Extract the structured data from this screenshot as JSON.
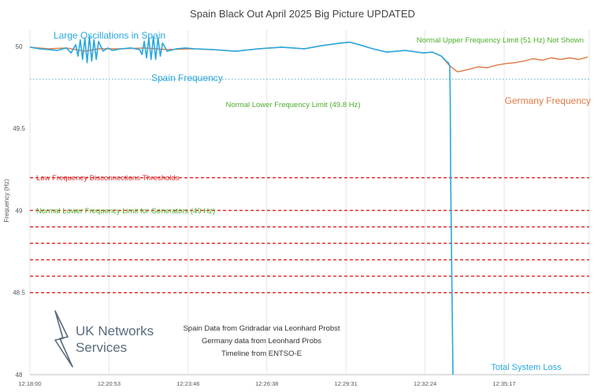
{
  "chart_data": {
    "type": "line",
    "title": "Spain Black Out April 2025 Big Picture UPDATED",
    "ylabel": "Frequency (Hz)",
    "ylim": [
      48,
      50.1
    ],
    "yticks": [
      {
        "value": 50,
        "label": "50"
      },
      {
        "value": 49.5,
        "label": "49.5"
      },
      {
        "value": 49,
        "label": "49"
      },
      {
        "value": 48.5,
        "label": "48.5"
      },
      {
        "value": 48,
        "label": "48"
      }
    ],
    "xlim_seconds": [
      0,
      1223
    ],
    "xticks": [
      {
        "s": 0,
        "label": "12:18:00"
      },
      {
        "s": 173,
        "label": "12:20:53"
      },
      {
        "s": 346,
        "label": "12:23:46"
      },
      {
        "s": 518,
        "label": "12:26:38"
      },
      {
        "s": 691,
        "label": "12:29:31"
      },
      {
        "s": 864,
        "label": "12:32:24"
      },
      {
        "s": 1037,
        "label": "12:35:17"
      }
    ],
    "grid": true,
    "series": [
      {
        "name": "Germany Frequency",
        "color": "#e07a45",
        "x": [
          0,
          40,
          80,
          120,
          150,
          200,
          250,
          300,
          350,
          400,
          450,
          500,
          550,
          600,
          640,
          680,
          700,
          720,
          750,
          780,
          820,
          860,
          880,
          900,
          915,
          925,
          935,
          945,
          960,
          980,
          1000,
          1020,
          1040,
          1060,
          1080,
          1100,
          1120,
          1140,
          1160,
          1180,
          1200,
          1220
        ],
        "y": [
          49.995,
          49.985,
          49.99,
          49.97,
          49.985,
          49.985,
          49.99,
          49.98,
          49.985,
          49.98,
          49.97,
          49.985,
          49.995,
          49.985,
          50.005,
          50.02,
          50.025,
          50.01,
          49.985,
          49.965,
          49.975,
          49.96,
          49.965,
          49.94,
          49.89,
          49.865,
          49.845,
          49.85,
          49.86,
          49.875,
          49.87,
          49.885,
          49.895,
          49.9,
          49.91,
          49.925,
          49.915,
          49.93,
          49.92,
          49.93,
          49.92,
          49.935
        ]
      },
      {
        "name": "Spain Frequency",
        "color": "#29a8e0",
        "x": [
          0,
          20,
          40,
          60,
          80,
          90,
          100,
          105,
          110,
          115,
          120,
          125,
          130,
          135,
          140,
          145,
          150,
          160,
          170,
          180,
          200,
          220,
          240,
          245,
          250,
          255,
          260,
          265,
          270,
          275,
          280,
          285,
          290,
          300,
          320,
          340,
          360,
          400,
          450,
          500,
          550,
          600,
          640,
          680,
          700,
          720,
          750,
          780,
          820,
          860,
          880,
          900,
          910,
          915,
          918,
          919,
          920,
          925
        ],
        "y": [
          49.995,
          49.985,
          49.98,
          49.975,
          49.99,
          49.96,
          50.01,
          49.94,
          50.04,
          49.92,
          50.05,
          49.9,
          50.06,
          49.91,
          50.04,
          49.92,
          50.03,
          49.97,
          49.99,
          49.975,
          49.985,
          49.99,
          49.98,
          49.95,
          50.03,
          49.93,
          50.05,
          49.92,
          50.06,
          49.92,
          50.05,
          49.94,
          50.02,
          49.97,
          49.985,
          49.99,
          49.985,
          49.98,
          49.97,
          49.985,
          49.995,
          49.985,
          50.005,
          50.02,
          50.025,
          50.01,
          49.985,
          49.965,
          49.975,
          49.96,
          49.965,
          49.94,
          49.91,
          49.9,
          49.88,
          49.7,
          49.2,
          48.0
        ]
      }
    ],
    "reference_lines": [
      {
        "y": 49.8,
        "color": "#6fb8d6",
        "style": "dotted"
      },
      {
        "y": 49.2,
        "color": "#e03030",
        "style": "dashed"
      },
      {
        "y": 49.0,
        "color": "#e03030",
        "style": "dashed"
      },
      {
        "y": 48.9,
        "color": "#e03030",
        "style": "dashed"
      },
      {
        "y": 48.8,
        "color": "#e03030",
        "style": "dashed"
      },
      {
        "y": 48.7,
        "color": "#e03030",
        "style": "dashed"
      },
      {
        "y": 48.6,
        "color": "#e03030",
        "style": "dashed"
      },
      {
        "y": 48.5,
        "color": "#e03030",
        "style": "dashed"
      }
    ],
    "annotations": [
      {
        "key": "oscillations",
        "text": "Large Oscillations in Spain",
        "color": "#29a8e0"
      },
      {
        "key": "spain_freq",
        "text": "Spain Frequency",
        "color": "#29a8e0"
      },
      {
        "key": "upper_limit",
        "text": "Normal Upper Frequency Limit  (51 Hz)  Not Shown",
        "color": "#4caf2a"
      },
      {
        "key": "lower_limit",
        "text": "Normal Lower  Frequency Limit  (49.8 Hz)",
        "color": "#4caf2a"
      },
      {
        "key": "germany_freq",
        "text": "Germany Frequency",
        "color": "#e07a45"
      },
      {
        "key": "lf_disconnect",
        "text": "Low Frequency Disconnections Thresholds",
        "color": "#e03030"
      },
      {
        "key": "gen_limit",
        "text": "Normal Lower Frequency Limit for Generators (49 Hz)",
        "color": "#4caf2a"
      },
      {
        "key": "credit1",
        "text": "Spain Data from Gridradar via Leonhard Probst",
        "color": "#333333"
      },
      {
        "key": "credit2",
        "text": "Germany data from Leonhard Probs",
        "color": "#333333"
      },
      {
        "key": "credit3",
        "text": "Timeline from ENTSO-E",
        "color": "#333333"
      },
      {
        "key": "total_loss",
        "text": "Total System Loss",
        "color": "#29a8e0"
      }
    ]
  },
  "logo": {
    "line1": "UK Networks",
    "line2": "Services"
  }
}
